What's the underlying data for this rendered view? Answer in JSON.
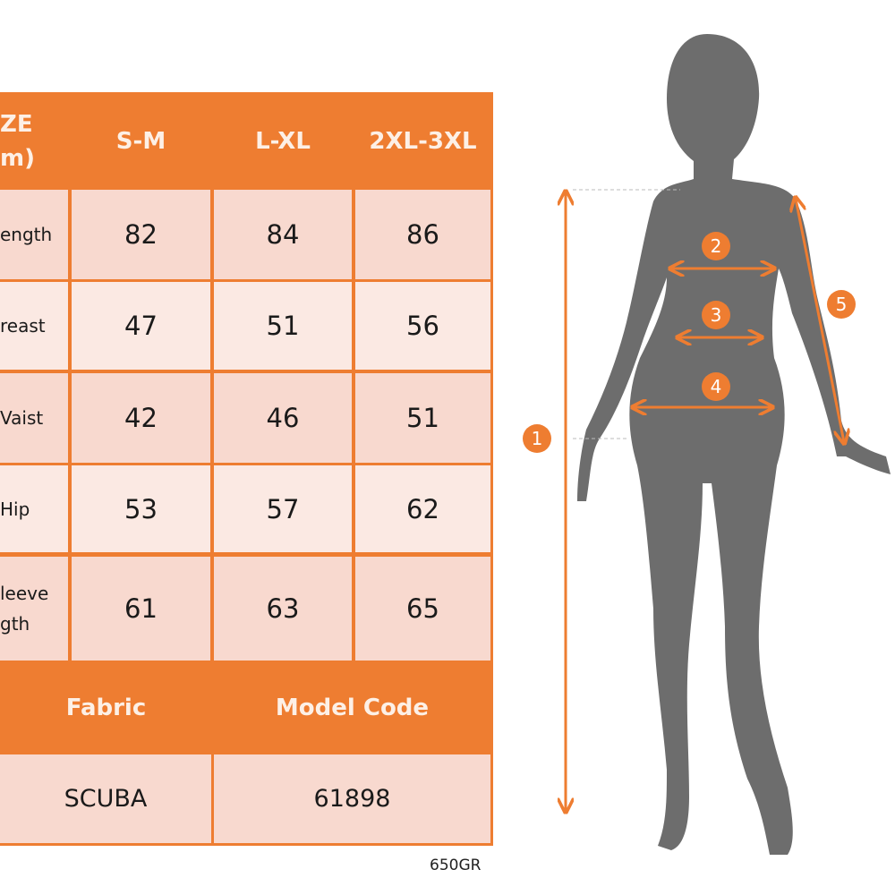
{
  "table": {
    "header": {
      "size_label": "ZE\nm)",
      "columns": [
        "S-M",
        "L-XL",
        "2XL-3XL"
      ]
    },
    "rows": [
      {
        "label": "ength",
        "values": [
          "82",
          "84",
          "86"
        ]
      },
      {
        "label": "reast",
        "values": [
          "47",
          "51",
          "56"
        ]
      },
      {
        "label": "Vaist",
        "values": [
          "42",
          "46",
          "51"
        ]
      },
      {
        "label": "Hip",
        "values": [
          "53",
          "57",
          "62"
        ]
      },
      {
        "label": "leeve\ngth",
        "values": [
          "61",
          "63",
          "65"
        ]
      }
    ],
    "footer_header": {
      "fabric": "Fabric",
      "model_code": "Model Code"
    },
    "footer_values": {
      "fabric": "SCUBA",
      "model_code": "61898"
    }
  },
  "code": "650GR",
  "figure": {
    "markers": [
      "1",
      "2",
      "3",
      "4",
      "5"
    ]
  },
  "colors": {
    "accent": "#ee7d31",
    "row_dark": "#f8d9cf",
    "row_light": "#fbe9e3",
    "silhouette": "#6d6d6d"
  }
}
